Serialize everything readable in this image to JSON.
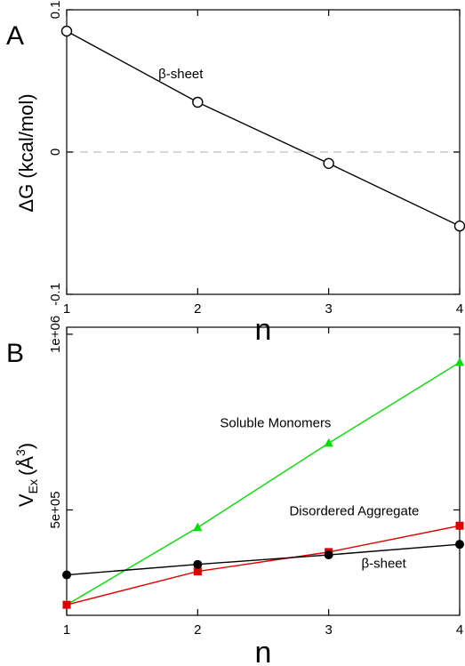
{
  "chart_data": [
    {
      "type": "line",
      "panel_label": "A",
      "xlabel": "n",
      "ylabel": "ΔG (kcal/mol)",
      "x": [
        1,
        2,
        3,
        4
      ],
      "xlim": [
        1,
        4
      ],
      "ylim": [
        -0.1,
        0.1
      ],
      "xticks": [
        "1",
        "2",
        "3",
        "4"
      ],
      "yticks": [
        {
          "value": -0.1,
          "label": "-0.1"
        },
        {
          "value": 0,
          "label": "0"
        },
        {
          "value": 0.1,
          "label": "0.1"
        }
      ],
      "reference_line": {
        "y": 0,
        "style": "dashed",
        "color": "#cccccc"
      },
      "series": [
        {
          "name": "β-sheet",
          "values": [
            0.085,
            0.035,
            -0.008,
            -0.052
          ],
          "color": "#000000",
          "marker": "open-circle"
        }
      ],
      "annotations": [
        {
          "text": "β-sheet",
          "x": 1.7,
          "y": 0.052
        }
      ],
      "grid": false
    },
    {
      "type": "line",
      "panel_label": "B",
      "xlabel": "n",
      "ylabel_main": "V",
      "ylabel_sub": "Ex",
      "ylabel_units": "(Å",
      "ylabel_sup": "3",
      "ylabel_close": ")",
      "x": [
        1,
        2,
        3,
        4
      ],
      "xlim": [
        1,
        4
      ],
      "ylim": [
        200000,
        1020000
      ],
      "xticks": [
        "1",
        "2",
        "3",
        "4"
      ],
      "yticks": [
        {
          "value": 500000,
          "label": "5e+05"
        },
        {
          "value": 1000000,
          "label": "1e+06"
        }
      ],
      "series": [
        {
          "name": "Soluble Monomers",
          "values": [
            230000,
            450000,
            690000,
            920000
          ],
          "color": "#00e000",
          "marker": "filled-triangle"
        },
        {
          "name": "Disordered Aggregate",
          "values": [
            230000,
            325000,
            380000,
            455000
          ],
          "color": "#e00000",
          "marker": "filled-square"
        },
        {
          "name": "β-sheet",
          "values": [
            315000,
            345000,
            372000,
            402000
          ],
          "color": "#000000",
          "marker": "filled-circle"
        }
      ],
      "annotations": [
        {
          "text": "Soluble Monomers",
          "x": 2.17,
          "y": 735000
        },
        {
          "text": "Disordered Aggregate",
          "x": 2.7,
          "y": 485000
        },
        {
          "text": "β-sheet",
          "x": 3.25,
          "y": 335000
        }
      ],
      "grid": false
    }
  ]
}
